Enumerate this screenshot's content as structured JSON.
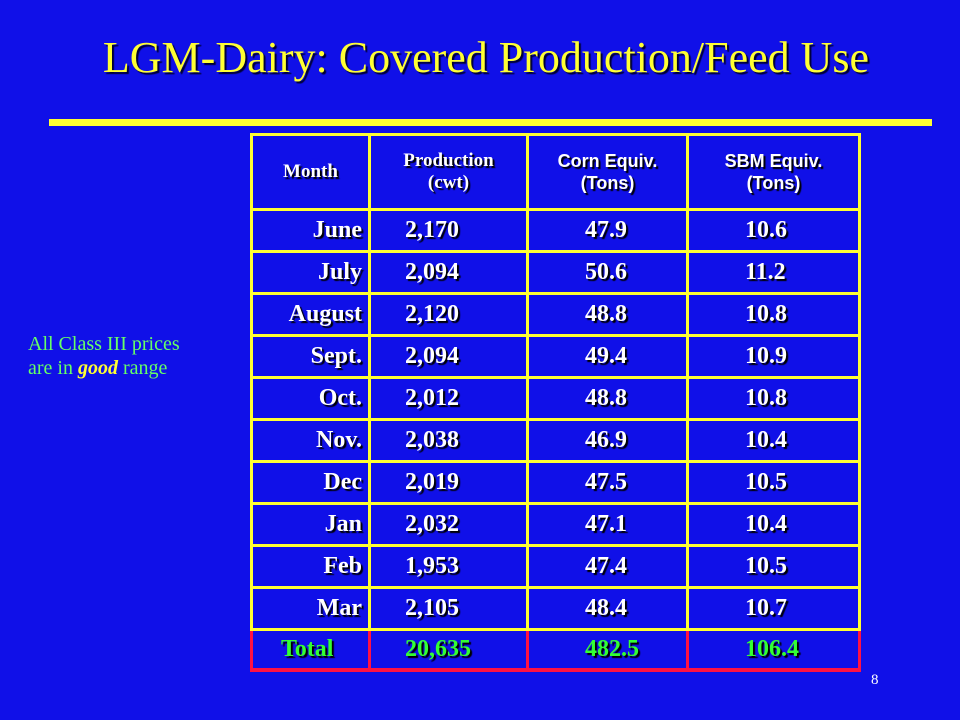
{
  "slide": {
    "title": "LGM-Dairy:  Covered Production/Feed Use",
    "side_note": {
      "line1": "All Class III prices",
      "line2_prefix": "are in ",
      "line2_emphasis": "good",
      "line2_suffix": " range"
    },
    "page_number": "8",
    "colors": {
      "background": "#1010e8",
      "title": "#ffff33",
      "table_border": "#ffff33",
      "total_border": "#ff1144",
      "total_text": "#33ff33",
      "note_text": "#66ff66"
    }
  },
  "table": {
    "headers": {
      "month": "Month",
      "production_line1": "Production",
      "production_line2": "(cwt)",
      "corn_line1": "Corn Equiv.",
      "corn_line2": "(Tons)",
      "sbm_line1": "SBM Equiv.",
      "sbm_line2": "(Tons)"
    },
    "rows": [
      {
        "month": "June",
        "production": "2,170",
        "corn": "47.9",
        "sbm": "10.6"
      },
      {
        "month": "July",
        "production": "2,094",
        "corn": "50.6",
        "sbm": "11.2"
      },
      {
        "month": "August",
        "production": "2,120",
        "corn": "48.8",
        "sbm": "10.8"
      },
      {
        "month": "Sept.",
        "production": "2,094",
        "corn": "49.4",
        "sbm": "10.9"
      },
      {
        "month": "Oct.",
        "production": "2,012",
        "corn": "48.8",
        "sbm": "10.8"
      },
      {
        "month": "Nov.",
        "production": "2,038",
        "corn": "46.9",
        "sbm": "10.4"
      },
      {
        "month": "Dec",
        "production": "2,019",
        "corn": "47.5",
        "sbm": "10.5"
      },
      {
        "month": "Jan",
        "production": "2,032",
        "corn": "47.1",
        "sbm": "10.4"
      },
      {
        "month": "Feb",
        "production": "1,953",
        "corn": "47.4",
        "sbm": "10.5"
      },
      {
        "month": "Mar",
        "production": "2,105",
        "corn": "48.4",
        "sbm": "10.7"
      }
    ],
    "total": {
      "month": "Total",
      "production": "20,635",
      "corn": "482.5",
      "sbm": "106.4"
    }
  }
}
